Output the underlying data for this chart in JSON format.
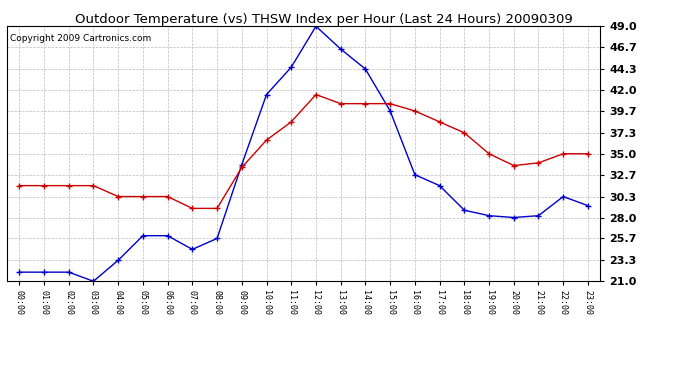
{
  "title": "Outdoor Temperature (vs) THSW Index per Hour (Last 24 Hours) 20090309",
  "copyright": "Copyright 2009 Cartronics.com",
  "hours": [
    "00:00",
    "01:00",
    "02:00",
    "03:00",
    "04:00",
    "05:00",
    "06:00",
    "07:00",
    "08:00",
    "09:00",
    "10:00",
    "11:00",
    "12:00",
    "13:00",
    "14:00",
    "15:00",
    "16:00",
    "17:00",
    "18:00",
    "19:00",
    "20:00",
    "21:00",
    "22:00",
    "23:00"
  ],
  "blue_thsw": [
    22.0,
    22.0,
    22.0,
    21.0,
    23.3,
    26.0,
    26.0,
    24.5,
    25.7,
    33.8,
    41.5,
    44.5,
    49.0,
    46.5,
    44.3,
    39.7,
    32.7,
    31.5,
    28.8,
    28.2,
    28.0,
    28.2,
    30.3,
    29.3
  ],
  "red_temp": [
    31.5,
    31.5,
    31.5,
    31.5,
    30.3,
    30.3,
    30.3,
    29.0,
    29.0,
    33.5,
    36.5,
    38.5,
    41.5,
    40.5,
    40.5,
    40.5,
    39.7,
    38.5,
    37.3,
    35.0,
    33.7,
    34.0,
    35.0,
    35.0
  ],
  "ylim_min": 21.0,
  "ylim_max": 49.0,
  "yticks": [
    21.0,
    23.3,
    25.7,
    28.0,
    30.3,
    32.7,
    35.0,
    37.3,
    39.7,
    42.0,
    44.3,
    46.7,
    49.0
  ],
  "blue_color": "#0000cc",
  "red_color": "#cc0000",
  "bg_color": "#ffffff",
  "grid_color": "#aaaaaa",
  "title_fontsize": 9.5,
  "copyright_fontsize": 6.5,
  "ytick_fontsize": 8,
  "xtick_fontsize": 6
}
